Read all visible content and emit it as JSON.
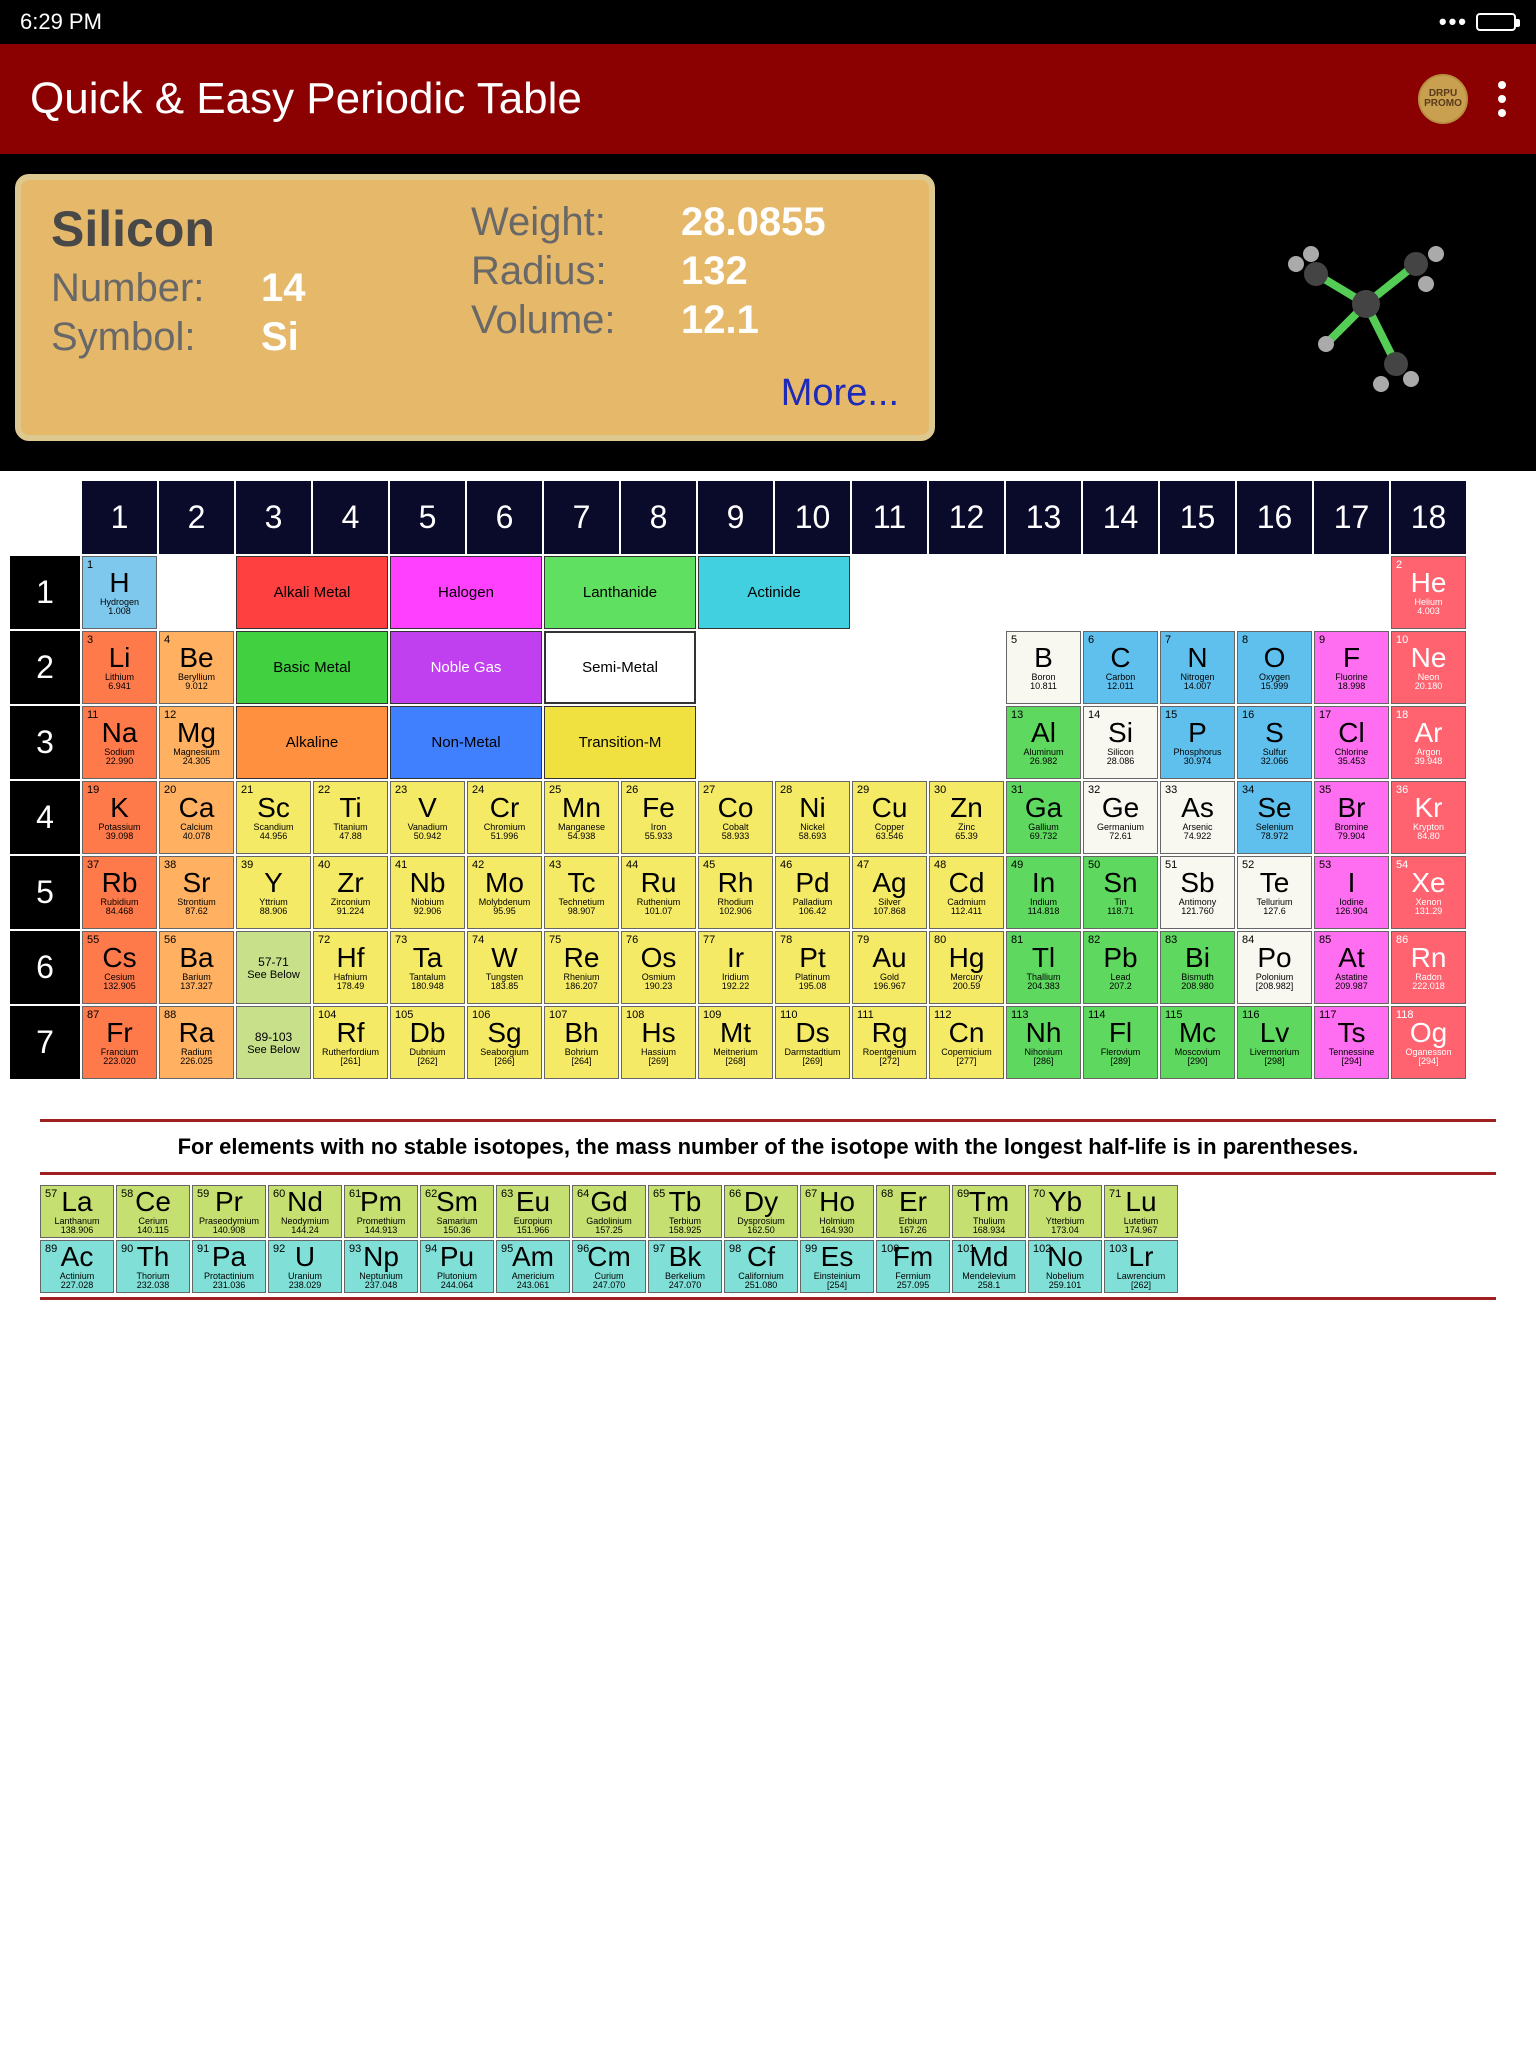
{
  "status": {
    "time": "6:29 PM"
  },
  "app": {
    "title": "Quick & Easy Periodic Table",
    "promo": "DRPU PROMO"
  },
  "detail": {
    "name": "Silicon",
    "number_label": "Number:",
    "number": "14",
    "symbol_label": "Symbol:",
    "symbol": "Si",
    "weight_label": "Weight:",
    "weight": "28.0855",
    "radius_label": "Radius:",
    "radius": "132",
    "volume_label": "Volume:",
    "volume": "12.1",
    "more": "More..."
  },
  "legends": {
    "alkali": "Alkali Metal",
    "halogen": "Halogen",
    "lanth": "Lanthanide",
    "act": "Actinide",
    "basic": "Basic Metal",
    "noble": "Noble Gas",
    "semi": "Semi-Metal",
    "alkaline": "Alkaline",
    "nonmetal": "Non-Metal",
    "trans": "Transition-M"
  },
  "legend_colors": {
    "alkali": "#ff4040",
    "halogen": "#ff40ff",
    "lanth": "#60e060",
    "act": "#40d0e0",
    "basic": "#40d040",
    "noble": "#c040f0",
    "semi": "#ffffff",
    "alkaline": "#ff9040",
    "nonmetal": "#4080ff",
    "trans": "#f0e040"
  },
  "cols": [
    "1",
    "2",
    "3",
    "4",
    "5",
    "6",
    "7",
    "8",
    "9",
    "10",
    "11",
    "12",
    "13",
    "14",
    "15",
    "16",
    "17",
    "18"
  ],
  "rows": [
    "1",
    "2",
    "3",
    "4",
    "5",
    "6",
    "7"
  ],
  "see_below_1": "57-71",
  "see_below_2": "89-103",
  "see_below_text": "See Below",
  "note": "For elements with no stable isotopes, the mass number of the isotope with the longest half-life is in parentheses.",
  "elements": {
    "H": {
      "n": "1",
      "s": "H",
      "nm": "Hydrogen",
      "w": "1.008",
      "c": "c-h"
    },
    "He": {
      "n": "2",
      "s": "He",
      "nm": "Helium",
      "w": "4.003",
      "c": "c-noble-he"
    },
    "Li": {
      "n": "3",
      "s": "Li",
      "nm": "Lithium",
      "w": "6.941",
      "c": "c-alkali"
    },
    "Be": {
      "n": "4",
      "s": "Be",
      "nm": "Beryllium",
      "w": "9.012",
      "c": "c-alkaline"
    },
    "B": {
      "n": "5",
      "s": "B",
      "nm": "Boron",
      "w": "10.811",
      "c": "c-semi"
    },
    "C": {
      "n": "6",
      "s": "C",
      "nm": "Carbon",
      "w": "12.011",
      "c": "c-nonmetal"
    },
    "N": {
      "n": "7",
      "s": "N",
      "nm": "Nitrogen",
      "w": "14.007",
      "c": "c-nonmetal"
    },
    "O": {
      "n": "8",
      "s": "O",
      "nm": "Oxygen",
      "w": "15.999",
      "c": "c-nonmetal"
    },
    "F": {
      "n": "9",
      "s": "F",
      "nm": "Fluorine",
      "w": "18.998",
      "c": "c-halogen"
    },
    "Ne": {
      "n": "10",
      "s": "Ne",
      "nm": "Neon",
      "w": "20.180",
      "c": "c-noble-he"
    },
    "Na": {
      "n": "11",
      "s": "Na",
      "nm": "Sodium",
      "w": "22.990",
      "c": "c-alkali"
    },
    "Mg": {
      "n": "12",
      "s": "Mg",
      "nm": "Magnesium",
      "w": "24.305",
      "c": "c-alkaline"
    },
    "Al": {
      "n": "13",
      "s": "Al",
      "nm": "Aluminum",
      "w": "26.982",
      "c": "c-basic"
    },
    "Si": {
      "n": "14",
      "s": "Si",
      "nm": "Silicon",
      "w": "28.086",
      "c": "c-semi"
    },
    "P": {
      "n": "15",
      "s": "P",
      "nm": "Phosphorus",
      "w": "30.974",
      "c": "c-nonmetal"
    },
    "S": {
      "n": "16",
      "s": "S",
      "nm": "Sulfur",
      "w": "32.066",
      "c": "c-nonmetal"
    },
    "Cl": {
      "n": "17",
      "s": "Cl",
      "nm": "Chlorine",
      "w": "35.453",
      "c": "c-halogen"
    },
    "Ar": {
      "n": "18",
      "s": "Ar",
      "nm": "Argon",
      "w": "39.948",
      "c": "c-noble-he"
    },
    "K": {
      "n": "19",
      "s": "K",
      "nm": "Potassium",
      "w": "39.098",
      "c": "c-alkali"
    },
    "Ca": {
      "n": "20",
      "s": "Ca",
      "nm": "Calcium",
      "w": "40.078",
      "c": "c-alkaline"
    },
    "Sc": {
      "n": "21",
      "s": "Sc",
      "nm": "Scandium",
      "w": "44.956",
      "c": "c-trans"
    },
    "Ti": {
      "n": "22",
      "s": "Ti",
      "nm": "Titanium",
      "w": "47.88",
      "c": "c-trans"
    },
    "V": {
      "n": "23",
      "s": "V",
      "nm": "Vanadium",
      "w": "50.942",
      "c": "c-trans"
    },
    "Cr": {
      "n": "24",
      "s": "Cr",
      "nm": "Chromium",
      "w": "51.996",
      "c": "c-trans"
    },
    "Mn": {
      "n": "25",
      "s": "Mn",
      "nm": "Manganese",
      "w": "54.938",
      "c": "c-trans"
    },
    "Fe": {
      "n": "26",
      "s": "Fe",
      "nm": "Iron",
      "w": "55.933",
      "c": "c-trans"
    },
    "Co": {
      "n": "27",
      "s": "Co",
      "nm": "Cobalt",
      "w": "58.933",
      "c": "c-trans"
    },
    "Ni": {
      "n": "28",
      "s": "Ni",
      "nm": "Nickel",
      "w": "58.693",
      "c": "c-trans"
    },
    "Cu": {
      "n": "29",
      "s": "Cu",
      "nm": "Copper",
      "w": "63.546",
      "c": "c-trans"
    },
    "Zn": {
      "n": "30",
      "s": "Zn",
      "nm": "Zinc",
      "w": "65.39",
      "c": "c-trans"
    },
    "Ga": {
      "n": "31",
      "s": "Ga",
      "nm": "Gallium",
      "w": "69.732",
      "c": "c-basic"
    },
    "Ge": {
      "n": "32",
      "s": "Ge",
      "nm": "Germanium",
      "w": "72.61",
      "c": "c-semi"
    },
    "As": {
      "n": "33",
      "s": "As",
      "nm": "Arsenic",
      "w": "74.922",
      "c": "c-semi"
    },
    "Se": {
      "n": "34",
      "s": "Se",
      "nm": "Selenium",
      "w": "78.972",
      "c": "c-nonmetal"
    },
    "Br": {
      "n": "35",
      "s": "Br",
      "nm": "Bromine",
      "w": "79.904",
      "c": "c-halogen"
    },
    "Kr": {
      "n": "36",
      "s": "Kr",
      "nm": "Krypton",
      "w": "84.80",
      "c": "c-noble-he"
    },
    "Rb": {
      "n": "37",
      "s": "Rb",
      "nm": "Rubidium",
      "w": "84.468",
      "c": "c-alkali"
    },
    "Sr": {
      "n": "38",
      "s": "Sr",
      "nm": "Strontium",
      "w": "87.62",
      "c": "c-alkaline"
    },
    "Y": {
      "n": "39",
      "s": "Y",
      "nm": "Yttrium",
      "w": "88.906",
      "c": "c-trans"
    },
    "Zr": {
      "n": "40",
      "s": "Zr",
      "nm": "Zirconium",
      "w": "91.224",
      "c": "c-trans"
    },
    "Nb": {
      "n": "41",
      "s": "Nb",
      "nm": "Niobium",
      "w": "92.906",
      "c": "c-trans"
    },
    "Mo": {
      "n": "42",
      "s": "Mo",
      "nm": "Molybdenum",
      "w": "95.95",
      "c": "c-trans"
    },
    "Tc": {
      "n": "43",
      "s": "Tc",
      "nm": "Technetium",
      "w": "98.907",
      "c": "c-trans"
    },
    "Ru": {
      "n": "44",
      "s": "Ru",
      "nm": "Ruthenium",
      "w": "101.07",
      "c": "c-trans"
    },
    "Rh": {
      "n": "45",
      "s": "Rh",
      "nm": "Rhodium",
      "w": "102.906",
      "c": "c-trans"
    },
    "Pd": {
      "n": "46",
      "s": "Pd",
      "nm": "Palladium",
      "w": "106.42",
      "c": "c-trans"
    },
    "Ag": {
      "n": "47",
      "s": "Ag",
      "nm": "Silver",
      "w": "107.868",
      "c": "c-trans"
    },
    "Cd": {
      "n": "48",
      "s": "Cd",
      "nm": "Cadmium",
      "w": "112.411",
      "c": "c-trans"
    },
    "In": {
      "n": "49",
      "s": "In",
      "nm": "Indium",
      "w": "114.818",
      "c": "c-basic"
    },
    "Sn": {
      "n": "50",
      "s": "Sn",
      "nm": "Tin",
      "w": "118.71",
      "c": "c-basic"
    },
    "Sb": {
      "n": "51",
      "s": "Sb",
      "nm": "Antimony",
      "w": "121.760",
      "c": "c-semi"
    },
    "Te": {
      "n": "52",
      "s": "Te",
      "nm": "Tellurium",
      "w": "127.6",
      "c": "c-semi"
    },
    "I": {
      "n": "53",
      "s": "I",
      "nm": "Iodine",
      "w": "126.904",
      "c": "c-halogen"
    },
    "Xe": {
      "n": "54",
      "s": "Xe",
      "nm": "Xenon",
      "w": "131.29",
      "c": "c-noble-he"
    },
    "Cs": {
      "n": "55",
      "s": "Cs",
      "nm": "Cesium",
      "w": "132.905",
      "c": "c-alkali"
    },
    "Ba": {
      "n": "56",
      "s": "Ba",
      "nm": "Barium",
      "w": "137.327",
      "c": "c-alkaline"
    },
    "Hf": {
      "n": "72",
      "s": "Hf",
      "nm": "Hafnium",
      "w": "178.49",
      "c": "c-trans"
    },
    "Ta": {
      "n": "73",
      "s": "Ta",
      "nm": "Tantalum",
      "w": "180.948",
      "c": "c-trans"
    },
    "W": {
      "n": "74",
      "s": "W",
      "nm": "Tungsten",
      "w": "183.85",
      "c": "c-trans"
    },
    "Re": {
      "n": "75",
      "s": "Re",
      "nm": "Rhenium",
      "w": "186.207",
      "c": "c-trans"
    },
    "Os": {
      "n": "76",
      "s": "Os",
      "nm": "Osmium",
      "w": "190.23",
      "c": "c-trans"
    },
    "Ir": {
      "n": "77",
      "s": "Ir",
      "nm": "Iridium",
      "w": "192.22",
      "c": "c-trans"
    },
    "Pt": {
      "n": "78",
      "s": "Pt",
      "nm": "Platinum",
      "w": "195.08",
      "c": "c-trans"
    },
    "Au": {
      "n": "79",
      "s": "Au",
      "nm": "Gold",
      "w": "196.967",
      "c": "c-trans"
    },
    "Hg": {
      "n": "80",
      "s": "Hg",
      "nm": "Mercury",
      "w": "200.59",
      "c": "c-trans"
    },
    "Tl": {
      "n": "81",
      "s": "Tl",
      "nm": "Thallium",
      "w": "204.383",
      "c": "c-basic"
    },
    "Pb": {
      "n": "82",
      "s": "Pb",
      "nm": "Lead",
      "w": "207.2",
      "c": "c-basic"
    },
    "Bi": {
      "n": "83",
      "s": "Bi",
      "nm": "Bismuth",
      "w": "208.980",
      "c": "c-basic"
    },
    "Po": {
      "n": "84",
      "s": "Po",
      "nm": "Polonium",
      "w": "[208.982]",
      "c": "c-semi"
    },
    "At": {
      "n": "85",
      "s": "At",
      "nm": "Astatine",
      "w": "209.987",
      "c": "c-halogen"
    },
    "Rn": {
      "n": "86",
      "s": "Rn",
      "nm": "Radon",
      "w": "222.018",
      "c": "c-noble-he"
    },
    "Fr": {
      "n": "87",
      "s": "Fr",
      "nm": "Francium",
      "w": "223.020",
      "c": "c-alkali"
    },
    "Ra": {
      "n": "88",
      "s": "Ra",
      "nm": "Radium",
      "w": "226.025",
      "c": "c-alkaline"
    },
    "Rf": {
      "n": "104",
      "s": "Rf",
      "nm": "Rutherfordium",
      "w": "[261]",
      "c": "c-trans"
    },
    "Db": {
      "n": "105",
      "s": "Db",
      "nm": "Dubnium",
      "w": "[262]",
      "c": "c-trans"
    },
    "Sg": {
      "n": "106",
      "s": "Sg",
      "nm": "Seaborgium",
      "w": "[266]",
      "c": "c-trans"
    },
    "Bh": {
      "n": "107",
      "s": "Bh",
      "nm": "Bohrium",
      "w": "[264]",
      "c": "c-trans"
    },
    "Hs": {
      "n": "108",
      "s": "Hs",
      "nm": "Hassium",
      "w": "[269]",
      "c": "c-trans"
    },
    "Mt": {
      "n": "109",
      "s": "Mt",
      "nm": "Meitnerium",
      "w": "[268]",
      "c": "c-trans"
    },
    "Ds": {
      "n": "110",
      "s": "Ds",
      "nm": "Darmstadtium",
      "w": "[269]",
      "c": "c-trans"
    },
    "Rg": {
      "n": "111",
      "s": "Rg",
      "nm": "Roentgenium",
      "w": "[272]",
      "c": "c-trans"
    },
    "Cn": {
      "n": "112",
      "s": "Cn",
      "nm": "Copernicium",
      "w": "[277]",
      "c": "c-trans"
    },
    "Nh": {
      "n": "113",
      "s": "Nh",
      "nm": "Nihonium",
      "w": "[286]",
      "c": "c-basic"
    },
    "Fl": {
      "n": "114",
      "s": "Fl",
      "nm": "Flerovium",
      "w": "[289]",
      "c": "c-basic"
    },
    "Mc": {
      "n": "115",
      "s": "Mc",
      "nm": "Moscovium",
      "w": "[290]",
      "c": "c-basic"
    },
    "Lv": {
      "n": "116",
      "s": "Lv",
      "nm": "Livermorium",
      "w": "[298]",
      "c": "c-basic"
    },
    "Ts": {
      "n": "117",
      "s": "Ts",
      "nm": "Tennessine",
      "w": "[294]",
      "c": "c-halogen"
    },
    "Og": {
      "n": "118",
      "s": "Og",
      "nm": "Oganesson",
      "w": "[294]",
      "c": "c-noble-he"
    }
  },
  "lanth": [
    {
      "n": "57",
      "s": "La",
      "nm": "Lanthanum",
      "w": "138.906"
    },
    {
      "n": "58",
      "s": "Ce",
      "nm": "Cerium",
      "w": "140.115"
    },
    {
      "n": "59",
      "s": "Pr",
      "nm": "Praseodymium",
      "w": "140.908"
    },
    {
      "n": "60",
      "s": "Nd",
      "nm": "Neodymium",
      "w": "144.24"
    },
    {
      "n": "61",
      "s": "Pm",
      "nm": "Promethium",
      "w": "144.913"
    },
    {
      "n": "62",
      "s": "Sm",
      "nm": "Samarium",
      "w": "150.36"
    },
    {
      "n": "63",
      "s": "Eu",
      "nm": "Europium",
      "w": "151.966"
    },
    {
      "n": "64",
      "s": "Gd",
      "nm": "Gadolinium",
      "w": "157.25"
    },
    {
      "n": "65",
      "s": "Tb",
      "nm": "Terbium",
      "w": "158.925"
    },
    {
      "n": "66",
      "s": "Dy",
      "nm": "Dysprosium",
      "w": "162.50"
    },
    {
      "n": "67",
      "s": "Ho",
      "nm": "Holmium",
      "w": "164.930"
    },
    {
      "n": "68",
      "s": "Er",
      "nm": "Erbium",
      "w": "167.26"
    },
    {
      "n": "69",
      "s": "Tm",
      "nm": "Thulium",
      "w": "168.934"
    },
    {
      "n": "70",
      "s": "Yb",
      "nm": "Ytterbium",
      "w": "173.04"
    },
    {
      "n": "71",
      "s": "Lu",
      "nm": "Lutetium",
      "w": "174.967"
    }
  ],
  "act": [
    {
      "n": "89",
      "s": "Ac",
      "nm": "Actinium",
      "w": "227.028"
    },
    {
      "n": "90",
      "s": "Th",
      "nm": "Thorium",
      "w": "232.038"
    },
    {
      "n": "91",
      "s": "Pa",
      "nm": "Protactinium",
      "w": "231.036"
    },
    {
      "n": "92",
      "s": "U",
      "nm": "Uranium",
      "w": "238.029"
    },
    {
      "n": "93",
      "s": "Np",
      "nm": "Neptunium",
      "w": "237.048"
    },
    {
      "n": "94",
      "s": "Pu",
      "nm": "Plutonium",
      "w": "244.064"
    },
    {
      "n": "95",
      "s": "Am",
      "nm": "Americium",
      "w": "243.061"
    },
    {
      "n": "96",
      "s": "Cm",
      "nm": "Curium",
      "w": "247.070"
    },
    {
      "n": "97",
      "s": "Bk",
      "nm": "Berkelium",
      "w": "247.070"
    },
    {
      "n": "98",
      "s": "Cf",
      "nm": "Californium",
      "w": "251.080"
    },
    {
      "n": "99",
      "s": "Es",
      "nm": "Einsteinium",
      "w": "[254]"
    },
    {
      "n": "100",
      "s": "Fm",
      "nm": "Fermium",
      "w": "257.095"
    },
    {
      "n": "101",
      "s": "Md",
      "nm": "Mendelevium",
      "w": "258.1"
    },
    {
      "n": "102",
      "s": "No",
      "nm": "Nobelium",
      "w": "259.101"
    },
    {
      "n": "103",
      "s": "Lr",
      "nm": "Lawrencium",
      "w": "[262]"
    }
  ],
  "layout": [
    [
      "H",
      "",
      "",
      "",
      "",
      "",
      "",
      "",
      "",
      "",
      "",
      "",
      "",
      "",
      "",
      "",
      "",
      "He"
    ],
    [
      "Li",
      "Be",
      "",
      "",
      "",
      "",
      "",
      "",
      "",
      "",
      "",
      "",
      "B",
      "C",
      "N",
      "O",
      "F",
      "Ne"
    ],
    [
      "Na",
      "Mg",
      "",
      "",
      "",
      "",
      "",
      "",
      "",
      "",
      "",
      "",
      "Al",
      "Si",
      "P",
      "S",
      "Cl",
      "Ar"
    ],
    [
      "K",
      "Ca",
      "Sc",
      "Ti",
      "V",
      "Cr",
      "Mn",
      "Fe",
      "Co",
      "Ni",
      "Cu",
      "Zn",
      "Ga",
      "Ge",
      "As",
      "Se",
      "Br",
      "Kr"
    ],
    [
      "Rb",
      "Sr",
      "Y",
      "Zr",
      "Nb",
      "Mo",
      "Tc",
      "Ru",
      "Rh",
      "Pd",
      "Ag",
      "Cd",
      "In",
      "Sn",
      "Sb",
      "Te",
      "I",
      "Xe"
    ],
    [
      "Cs",
      "Ba",
      "SB1",
      "Hf",
      "Ta",
      "W",
      "Re",
      "Os",
      "Ir",
      "Pt",
      "Au",
      "Hg",
      "Tl",
      "Pb",
      "Bi",
      "Po",
      "At",
      "Rn"
    ],
    [
      "Fr",
      "Ra",
      "SB2",
      "Rf",
      "Db",
      "Sg",
      "Bh",
      "Hs",
      "Mt",
      "Ds",
      "Rg",
      "Cn",
      "Nh",
      "Fl",
      "Mc",
      "Lv",
      "Ts",
      "Og"
    ]
  ]
}
